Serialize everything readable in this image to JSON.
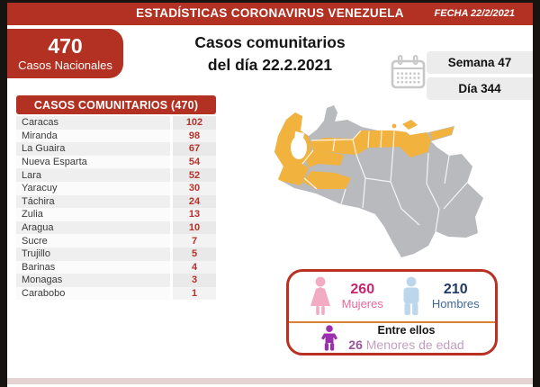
{
  "theme": {
    "brand_red": "#b23122",
    "number_red": "#b5332a",
    "box_border_red": "#b93123",
    "divider_orange": "#dd8136",
    "chip_bg": "#ececec",
    "calendar_gray": "#c8c8c8",
    "map_gray": "#b9babd",
    "map_highlight": "#f2b23e",
    "female_icon": "#f2abc2",
    "female_number": "#c9256e",
    "female_label": "#e8679c",
    "male_icon": "#bcd6ec",
    "male_number": "#203a66",
    "male_label": "#3f689f",
    "child_icon": "#9c2fae",
    "minors_number": "#9a549c",
    "minors_text": "#c49ec2",
    "bottom_strip": "#e5d3d3"
  },
  "header": {
    "title": "ESTADÍSTICAS CORONAVIRUS VENEZUELA",
    "date_label": "FECHA 22/2/2021"
  },
  "national": {
    "count": "470",
    "label": "Casos Nacionales"
  },
  "main_title": {
    "line1": "Casos comunitarios",
    "line2": "del día 22.2.2021"
  },
  "period": {
    "week": "Semana 47",
    "day": "Día 344"
  },
  "table": {
    "header": "CASOS COMUNITARIOS (470)",
    "rows": [
      {
        "state": "Caracas",
        "cases": "102"
      },
      {
        "state": "Miranda",
        "cases": "98"
      },
      {
        "state": "La Guaira",
        "cases": "67"
      },
      {
        "state": "Nueva Esparta",
        "cases": "54"
      },
      {
        "state": "Lara",
        "cases": "52"
      },
      {
        "state": "Yaracuy",
        "cases": "30"
      },
      {
        "state": "Táchira",
        "cases": "24"
      },
      {
        "state": "Zulia",
        "cases": "13"
      },
      {
        "state": "Aragua",
        "cases": "10"
      },
      {
        "state": "Sucre",
        "cases": "7"
      },
      {
        "state": "Trujillo",
        "cases": "5"
      },
      {
        "state": "Barinas",
        "cases": "4"
      },
      {
        "state": "Monagas",
        "cases": "3"
      },
      {
        "state": "Carabobo",
        "cases": "1"
      }
    ]
  },
  "map": {
    "name": "venezuela-states-map",
    "highlighted_states": [
      "Zulia",
      "Táchira",
      "Trujillo",
      "Lara",
      "Yaracuy",
      "Carabobo",
      "Aragua",
      "La Guaira",
      "Caracas",
      "Miranda",
      "Barinas",
      "Sucre",
      "Monagas",
      "Nueva Esparta"
    ]
  },
  "stats": {
    "women": {
      "value": "260",
      "label": "Mujeres"
    },
    "men": {
      "value": "210",
      "label": "Hombres"
    },
    "minors": {
      "intro": "Entre ellos",
      "value": "26",
      "label": "Menores de edad"
    }
  }
}
